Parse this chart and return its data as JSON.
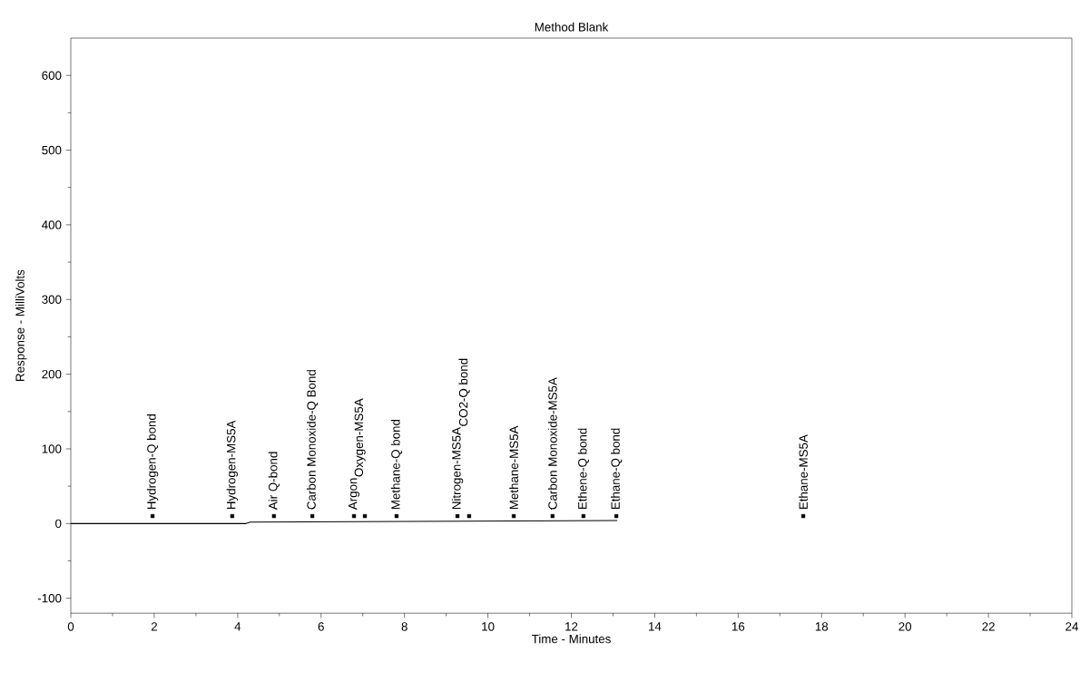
{
  "chart_data": {
    "type": "line",
    "title": "Method Blank",
    "xlabel": "Time - Minutes",
    "ylabel": "Response - MilliVolts",
    "series": [
      {
        "color": "#000000",
        "x": [
          0,
          4.2,
          4.3,
          13.1
        ],
        "values": [
          0,
          0,
          2,
          4
        ]
      },
      {
        "type": "scatter",
        "color": "#000000",
        "x": [
          1.96,
          3.87,
          4.87,
          5.79,
          6.79,
          7.05,
          7.81,
          9.27,
          9.55,
          10.62,
          11.55,
          12.29,
          13.08,
          17.56
        ],
        "values": [
          10,
          10,
          10,
          10,
          10,
          10,
          10,
          10,
          10,
          10,
          10,
          10,
          10,
          10
        ]
      }
    ],
    "xlim": [
      0,
      24
    ],
    "ylim": [
      -120,
      650
    ],
    "xticks": [
      0,
      2,
      4,
      6,
      8,
      10,
      12,
      14,
      16,
      18,
      20,
      22,
      24
    ],
    "yticks": [
      -100,
      0,
      100,
      200,
      300,
      400,
      500,
      600
    ],
    "annotations": [
      "Hydrogen-Q bond",
      "Hydrogen-MS5A",
      "Air Q-bond",
      "Carbon Monoxide-Q Bond",
      "Argon",
      "Oxygen-MS5A",
      "Methane-Q bond",
      "Nitrogen-MS5A",
      "CO2-Q bond",
      "Methane-MS5A",
      "Carbon Monoxide-MS5A",
      "Ethene-Q bond",
      "Ethane-Q bond",
      "Ethane-MS5A"
    ]
  }
}
